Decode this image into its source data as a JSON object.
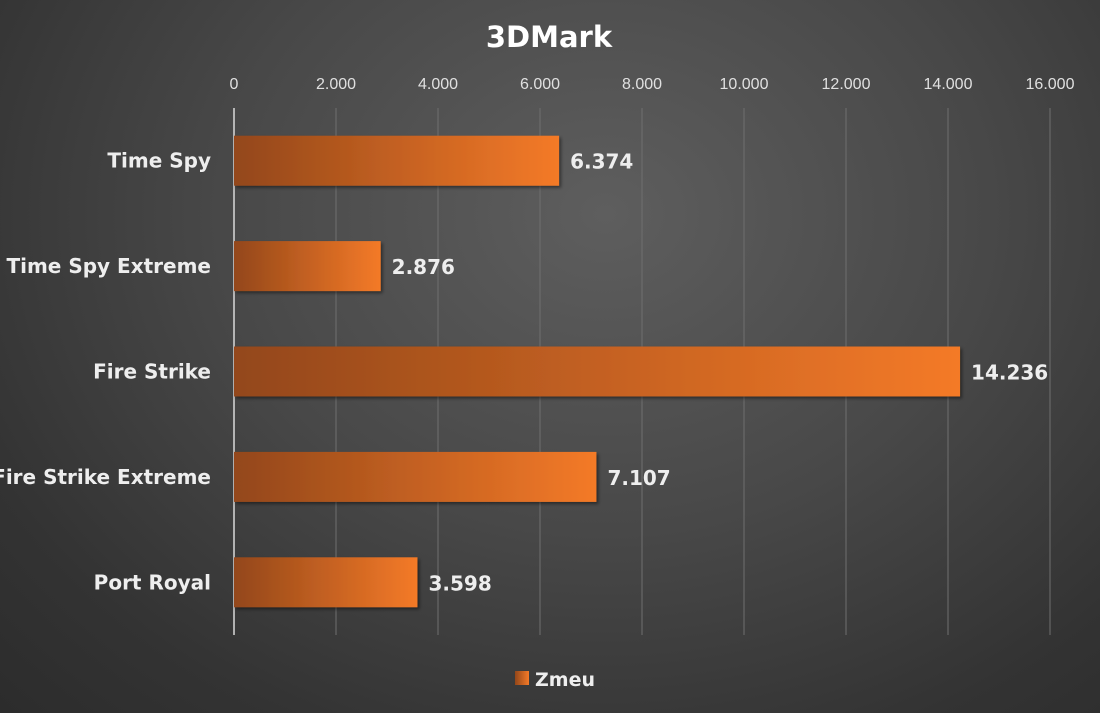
{
  "chart_data": {
    "type": "bar",
    "orientation": "horizontal",
    "title": "3DMark",
    "categories": [
      "Time Spy",
      "Time Spy Extreme",
      "Fire Strike",
      "Fire Strike Extreme",
      "Port Royal"
    ],
    "series": [
      {
        "name": "Zmeu",
        "values": [
          6374,
          2876,
          14236,
          7107,
          3598
        ],
        "value_labels": [
          "6.374",
          "2.876",
          "14.236",
          "7.107",
          "3.598"
        ],
        "color": "#f47a28"
      }
    ],
    "xlim": [
      0,
      16000
    ],
    "x_ticks": [
      0,
      2000,
      4000,
      6000,
      8000,
      10000,
      12000,
      14000,
      16000
    ],
    "x_tick_labels": [
      "0",
      "2.000",
      "4.000",
      "6.000",
      "8.000",
      "10.000",
      "12.000",
      "14.000",
      "16.000"
    ],
    "x_axis_position": "top",
    "xlabel": "",
    "ylabel": "",
    "grid": true,
    "legend": "bottom-center"
  },
  "colors": {
    "bar_light": "#f47a28",
    "bar_dark": "#93471a",
    "gridline": "#6f6f6f",
    "axis": "#d9d9d9"
  }
}
